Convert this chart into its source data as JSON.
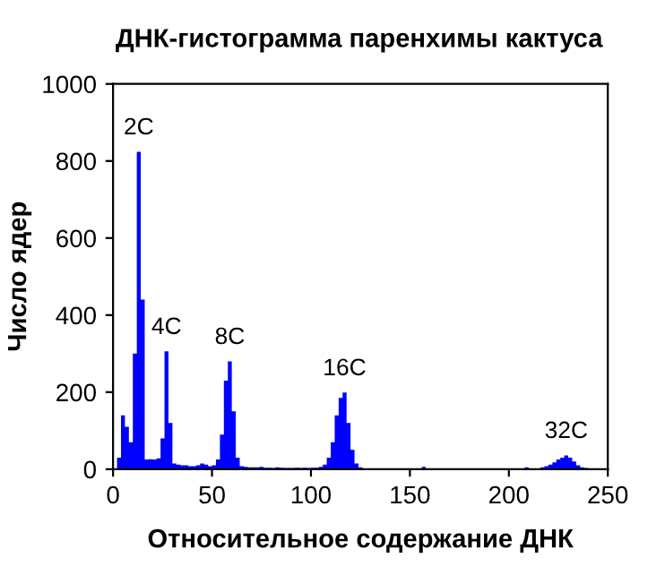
{
  "chart_data": {
    "type": "histogram",
    "title": "ДНК-гистограмма паренхимы кактуса",
    "xlabel": "Относительное содержание ДНК",
    "ylabel": "Число ядер",
    "color": "#0000ff",
    "bins": [
      0,
      2,
      4,
      6,
      8,
      10,
      12,
      14,
      16,
      18,
      20,
      22,
      24,
      26,
      28,
      30,
      32,
      34,
      36,
      38,
      40,
      42,
      44,
      46,
      48,
      50,
      52,
      54,
      56,
      58,
      60,
      62,
      64,
      66,
      68,
      70,
      72,
      74,
      76,
      78,
      80,
      82,
      84,
      86,
      88,
      90,
      92,
      94,
      96,
      98,
      100,
      102,
      104,
      106,
      108,
      110,
      112,
      114,
      116,
      118,
      120,
      122,
      124,
      126,
      128,
      130,
      132,
      134,
      136,
      138,
      140,
      142,
      144,
      146,
      148,
      150,
      152,
      154,
      156,
      158,
      160,
      162,
      164,
      166,
      168,
      170,
      172,
      174,
      176,
      178,
      180,
      182,
      184,
      186,
      188,
      190,
      192,
      194,
      196,
      198,
      200,
      202,
      204,
      206,
      208,
      210,
      212,
      214,
      216,
      218,
      220,
      222,
      224,
      226,
      228,
      230,
      232,
      234,
      236,
      238,
      240,
      242,
      244,
      246,
      248,
      250
    ],
    "values": [
      0,
      30,
      140,
      110,
      70,
      300,
      824,
      440,
      25,
      26,
      25,
      28,
      80,
      306,
      120,
      15,
      12,
      10,
      10,
      8,
      8,
      10,
      15,
      12,
      8,
      10,
      25,
      90,
      230,
      280,
      150,
      30,
      8,
      6,
      5,
      5,
      5,
      6,
      4,
      4,
      3,
      5,
      4,
      3,
      3,
      3,
      4,
      3,
      4,
      3,
      4,
      4,
      6,
      12,
      30,
      70,
      140,
      185,
      199,
      120,
      50,
      15,
      5,
      2,
      1,
      1,
      1,
      1,
      0,
      1,
      0,
      0,
      0,
      0,
      0,
      0,
      0,
      0,
      6,
      0,
      0,
      0,
      0,
      0,
      0,
      0,
      0,
      0,
      0,
      0,
      0,
      0,
      0,
      0,
      0,
      0,
      0,
      0,
      0,
      0,
      0,
      0,
      0,
      0,
      5,
      0,
      0,
      0,
      5,
      8,
      12,
      18,
      25,
      30,
      36,
      30,
      20,
      10,
      5,
      3,
      2,
      0,
      0,
      0,
      0
    ],
    "xlim": [
      0,
      250
    ],
    "xticks": [
      0,
      50,
      100,
      150,
      200,
      250
    ],
    "ylim": [
      0,
      1000
    ],
    "yticks": [
      0,
      200,
      400,
      600,
      800,
      1000
    ],
    "grid": false,
    "annotations": [
      {
        "text": "2C",
        "x": 13,
        "y": 824
      },
      {
        "text": "4C",
        "x": 27,
        "y": 306
      },
      {
        "text": "8C",
        "x": 59,
        "y": 280
      },
      {
        "text": "16C",
        "x": 117,
        "y": 199
      },
      {
        "text": "32C",
        "x": 229,
        "y": 36
      }
    ]
  }
}
